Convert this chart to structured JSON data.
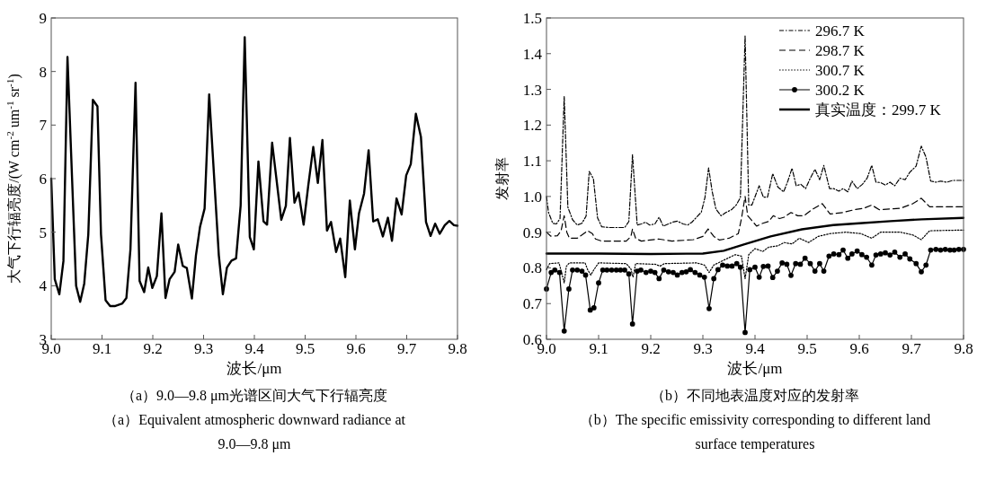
{
  "chart_data": [
    {
      "type": "line",
      "xlabel": "波长/μm",
      "ylabel": "大气下行辐亮度/(W cm$^{-2}$ um$^{-1}$ sr$^{-1}$)",
      "xlim": [
        9.0,
        9.8
      ],
      "ylim": [
        3,
        9
      ],
      "xticks": [
        {
          "value": 9.0,
          "label": "9.0"
        },
        9.1,
        9.2,
        9.3,
        9.4,
        9.5,
        9.6,
        9.7,
        9.8
      ],
      "yticks": [
        3,
        4,
        5,
        6,
        7,
        8,
        9
      ],
      "series": [
        {
          "color": "#000000",
          "line_style": "solid",
          "marker": "none",
          "x": [
            9.0,
            9.007,
            9.016,
            9.024,
            9.032,
            9.049,
            9.057,
            9.065,
            9.073,
            9.082,
            9.091,
            9.098,
            9.107,
            9.116,
            9.125,
            9.14,
            9.148,
            9.156,
            9.166,
            9.174,
            9.183,
            9.191,
            9.199,
            9.208,
            9.217,
            9.225,
            9.233,
            9.243,
            9.25,
            9.259,
            9.267,
            9.277,
            9.285,
            9.293,
            9.302,
            9.311,
            9.33,
            9.338,
            9.346,
            9.355,
            9.364,
            9.373,
            9.381,
            9.391,
            9.399,
            9.408,
            9.418,
            9.425,
            9.435,
            9.443,
            9.453,
            9.462,
            9.47,
            9.479,
            9.487,
            9.497,
            9.506,
            9.516,
            9.525,
            9.534,
            9.543,
            9.551,
            9.561,
            9.569,
            9.579,
            9.588,
            9.598,
            9.606,
            9.616,
            9.625,
            9.634,
            9.643,
            9.653,
            9.663,
            9.671,
            9.68,
            9.69,
            9.699,
            9.708,
            9.718,
            9.728,
            9.738,
            9.747,
            9.756,
            9.765,
            9.775,
            9.784,
            9.793,
            9.8
          ],
          "values": [
            6.0,
            4.12,
            3.84,
            4.46,
            8.27,
            4.0,
            3.7,
            4.04,
            4.96,
            7.47,
            7.35,
            4.96,
            3.73,
            3.62,
            3.62,
            3.67,
            3.77,
            4.68,
            7.79,
            4.09,
            3.88,
            4.34,
            3.96,
            4.18,
            5.35,
            3.77,
            4.12,
            4.26,
            4.77,
            4.37,
            4.33,
            3.76,
            4.57,
            5.1,
            5.44,
            7.57,
            4.57,
            3.84,
            4.34,
            4.47,
            4.51,
            5.5,
            8.64,
            4.91,
            4.68,
            6.32,
            5.2,
            5.14,
            6.67,
            6.03,
            5.23,
            5.49,
            6.76,
            5.55,
            5.74,
            5.14,
            5.86,
            6.59,
            5.92,
            6.72,
            5.03,
            5.19,
            4.63,
            4.88,
            4.16,
            5.59,
            4.68,
            5.35,
            5.72,
            6.53,
            5.2,
            5.24,
            4.92,
            5.27,
            4.84,
            5.63,
            5.33,
            6.06,
            6.27,
            7.21,
            6.78,
            5.19,
            4.93,
            5.16,
            4.97,
            5.13,
            5.21,
            5.13,
            5.12
          ]
        }
      ],
      "annotations": [
        "（a）9.0—9.8 μm光谱区间大气下行辐亮度",
        "（a）Equivalent atmospheric downward radiance at 9.0—9.8 μm"
      ]
    },
    {
      "type": "line",
      "xlabel": "波长/μm",
      "ylabel": "发射率",
      "xlim": [
        9.0,
        9.8
      ],
      "ylim": [
        0.6,
        1.5
      ],
      "legend": "top right",
      "xticks": [
        {
          "value": 9.0,
          "label": "9.0"
        },
        9.1,
        9.2,
        9.3,
        9.4,
        9.5,
        9.6,
        9.7,
        9.8
      ],
      "yticks": [
        0.6,
        0.7,
        0.8,
        0.9,
        {
          "value": 1.0,
          "label": "1.0"
        },
        1.1,
        1.2,
        1.3,
        1.4,
        1.5
      ],
      "series": [
        {
          "name": "296.7 K",
          "color": "#000000",
          "line_style": "dashdot",
          "marker": "none",
          "x": [
            9.0,
            9.004,
            9.012,
            9.019,
            9.026,
            9.034,
            9.041,
            9.05,
            9.059,
            9.068,
            9.076,
            9.082,
            9.09,
            9.098,
            9.106,
            9.121,
            9.15,
            9.158,
            9.165,
            9.174,
            9.182,
            9.19,
            9.198,
            9.208,
            9.216,
            9.224,
            9.234,
            9.242,
            9.251,
            9.262,
            9.271,
            9.279,
            9.288,
            9.297,
            9.304,
            9.311,
            9.318,
            9.325,
            9.335,
            9.344,
            9.355,
            9.364,
            9.372,
            9.381,
            9.388,
            9.394,
            9.408,
            9.416,
            9.424,
            9.434,
            9.444,
            9.455,
            9.463,
            9.471,
            9.479,
            9.488,
            9.497,
            9.506,
            9.515,
            9.524,
            9.532,
            9.543,
            9.551,
            9.561,
            9.569,
            9.578,
            9.586,
            9.596,
            9.606,
            9.615,
            9.624,
            9.632,
            9.641,
            9.65,
            9.659,
            9.668,
            9.678,
            9.688,
            9.697,
            9.709,
            9.719,
            9.728,
            9.737,
            9.747,
            9.756,
            9.768,
            9.779,
            9.8
          ],
          "values": [
            1.0,
            0.955,
            0.925,
            0.923,
            0.938,
            1.28,
            0.97,
            0.935,
            0.92,
            0.925,
            0.945,
            1.07,
            1.05,
            0.94,
            0.915,
            0.913,
            0.913,
            0.93,
            1.117,
            0.92,
            0.923,
            0.928,
            0.92,
            0.923,
            0.942,
            0.917,
            0.923,
            0.928,
            0.931,
            0.923,
            0.92,
            0.928,
            0.942,
            0.956,
            0.997,
            1.08,
            1.013,
            0.965,
            0.946,
            0.955,
            0.963,
            0.976,
            0.997,
            1.45,
            0.976,
            0.976,
            1.03,
            0.998,
            0.998,
            1.064,
            1.026,
            1.013,
            1.043,
            1.079,
            1.03,
            1.034,
            1.022,
            1.051,
            1.076,
            1.047,
            1.087,
            1.022,
            1.022,
            1.015,
            1.022,
            1.013,
            1.043,
            1.022,
            1.034,
            1.051,
            1.087,
            1.04,
            1.039,
            1.032,
            1.04,
            1.03,
            1.051,
            1.047,
            1.068,
            1.085,
            1.141,
            1.11,
            1.043,
            1.04,
            1.043,
            1.04,
            1.045,
            1.045
          ]
        },
        {
          "name": "298.7 K",
          "color": "#000000",
          "line_style": "dashed",
          "marker": "none",
          "x": [
            9.0,
            9.008,
            9.021,
            9.028,
            9.034,
            9.039,
            9.044,
            9.059,
            9.068,
            9.079,
            9.088,
            9.094,
            9.106,
            9.153,
            9.162,
            9.165,
            9.171,
            9.182,
            9.215,
            9.241,
            9.282,
            9.3,
            9.31,
            9.321,
            9.332,
            9.35,
            9.368,
            9.374,
            9.381,
            9.386,
            9.403,
            9.415,
            9.426,
            9.435,
            9.447,
            9.456,
            9.469,
            9.482,
            9.494,
            9.509,
            9.529,
            9.544,
            9.568,
            9.591,
            9.609,
            9.624,
            9.638,
            9.679,
            9.703,
            9.719,
            9.735,
            9.8
          ],
          "values": [
            0.9,
            0.889,
            0.89,
            0.904,
            0.946,
            0.9,
            0.883,
            0.883,
            0.892,
            0.904,
            0.896,
            0.881,
            0.875,
            0.875,
            0.888,
            0.909,
            0.883,
            0.875,
            0.881,
            0.875,
            0.879,
            0.888,
            0.909,
            0.888,
            0.878,
            0.883,
            0.896,
            0.938,
            1.0,
            0.946,
            0.917,
            0.925,
            0.93,
            0.946,
            0.938,
            0.942,
            0.955,
            0.946,
            0.946,
            0.963,
            0.98,
            0.951,
            0.955,
            0.963,
            0.967,
            0.976,
            0.963,
            0.967,
            0.98,
            0.995,
            0.971,
            0.971
          ]
        },
        {
          "name": "300.7 K",
          "color": "#000000",
          "line_style": "dotted",
          "marker": "none",
          "x": [
            9.0,
            9.006,
            9.024,
            9.029,
            9.034,
            9.038,
            9.044,
            9.074,
            9.079,
            9.085,
            9.091,
            9.1,
            9.153,
            9.162,
            9.166,
            9.171,
            9.209,
            9.218,
            9.226,
            9.288,
            9.303,
            9.312,
            9.321,
            9.362,
            9.374,
            9.381,
            9.388,
            9.4,
            9.415,
            9.426,
            9.444,
            9.456,
            9.471,
            9.485,
            9.503,
            9.521,
            9.544,
            9.574,
            9.603,
            9.624,
            9.641,
            9.679,
            9.703,
            9.719,
            9.735,
            9.8
          ],
          "values": [
            0.795,
            0.812,
            0.814,
            0.787,
            0.758,
            0.804,
            0.814,
            0.814,
            0.795,
            0.78,
            0.795,
            0.814,
            0.812,
            0.797,
            0.774,
            0.812,
            0.81,
            0.805,
            0.812,
            0.814,
            0.808,
            0.787,
            0.808,
            0.837,
            0.833,
            0.77,
            0.837,
            0.854,
            0.846,
            0.858,
            0.862,
            0.871,
            0.867,
            0.883,
            0.871,
            0.888,
            0.896,
            0.9,
            0.896,
            0.883,
            0.9,
            0.9,
            0.892,
            0.879,
            0.904,
            0.906
          ]
        },
        {
          "name": "300.2 K",
          "color": "#000000",
          "line_style": "solid",
          "marker": "circle",
          "x": [
            9.0,
            9.009,
            9.016,
            9.025,
            9.034,
            9.043,
            9.05,
            9.059,
            9.068,
            9.075,
            9.084,
            9.091,
            9.1,
            9.108,
            9.116,
            9.125,
            9.134,
            9.142,
            9.15,
            9.158,
            9.165,
            9.174,
            9.181,
            9.191,
            9.2,
            9.208,
            9.216,
            9.225,
            9.234,
            9.243,
            9.251,
            9.26,
            9.268,
            9.276,
            9.285,
            9.294,
            9.303,
            9.312,
            9.321,
            9.329,
            9.338,
            9.347,
            9.356,
            9.365,
            9.372,
            9.381,
            9.39,
            9.4,
            9.408,
            9.416,
            9.425,
            9.434,
            9.443,
            9.452,
            9.461,
            9.469,
            9.478,
            9.487,
            9.496,
            9.506,
            9.515,
            9.524,
            9.532,
            9.542,
            9.551,
            9.561,
            9.569,
            9.578,
            9.586,
            9.596,
            9.605,
            9.614,
            9.624,
            9.632,
            9.641,
            9.65,
            9.659,
            9.668,
            9.678,
            9.688,
            9.697,
            9.709,
            9.719,
            9.728,
            9.737,
            9.747,
            9.756,
            9.765,
            9.774,
            9.782,
            9.791,
            9.8
          ],
          "values": [
            0.741,
            0.787,
            0.794,
            0.787,
            0.623,
            0.741,
            0.794,
            0.794,
            0.791,
            0.78,
            0.682,
            0.688,
            0.758,
            0.794,
            0.794,
            0.794,
            0.794,
            0.794,
            0.794,
            0.783,
            0.643,
            0.791,
            0.794,
            0.787,
            0.791,
            0.787,
            0.77,
            0.794,
            0.789,
            0.787,
            0.78,
            0.787,
            0.789,
            0.795,
            0.787,
            0.78,
            0.774,
            0.686,
            0.77,
            0.795,
            0.808,
            0.805,
            0.805,
            0.812,
            0.802,
            0.619,
            0.795,
            0.802,
            0.774,
            0.804,
            0.805,
            0.773,
            0.791,
            0.814,
            0.81,
            0.779,
            0.812,
            0.81,
            0.827,
            0.812,
            0.791,
            0.812,
            0.791,
            0.833,
            0.839,
            0.837,
            0.85,
            0.827,
            0.839,
            0.847,
            0.837,
            0.83,
            0.808,
            0.836,
            0.839,
            0.842,
            0.836,
            0.844,
            0.83,
            0.839,
            0.825,
            0.812,
            0.789,
            0.808,
            0.85,
            0.852,
            0.85,
            0.852,
            0.85,
            0.85,
            0.852,
            0.852
          ]
        },
        {
          "name": "真实温度：299.7 K",
          "color": "#000000",
          "line_style": "solid",
          "marker": "none",
          "x": [
            9.0,
            9.1,
            9.2,
            9.3,
            9.34,
            9.38,
            9.43,
            9.49,
            9.55,
            9.6,
            9.66,
            9.72,
            9.8
          ],
          "values": [
            0.84,
            0.84,
            0.839,
            0.84,
            0.848,
            0.866,
            0.888,
            0.908,
            0.92,
            0.925,
            0.931,
            0.936,
            0.94
          ]
        }
      ],
      "annotations": [
        "（b）不同地表温度对应的发射率",
        "（b）The specific emissivity corresponding to different land surface temperatures"
      ]
    }
  ]
}
